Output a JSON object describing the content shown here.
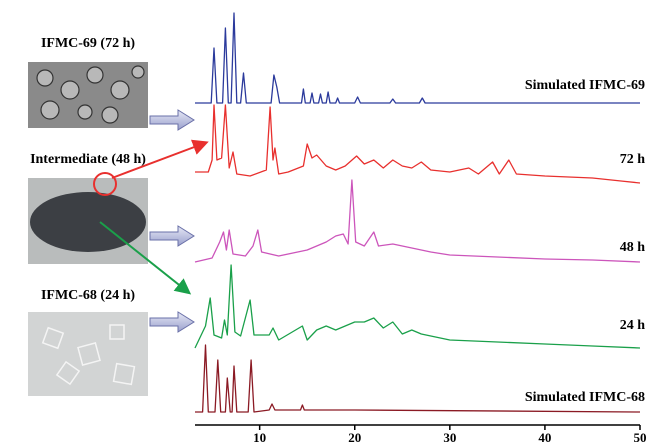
{
  "chart_data": {
    "type": "line",
    "xlim": [
      3.2,
      50
    ],
    "xticks": [
      10,
      20,
      30,
      40,
      50
    ],
    "annotations": [
      "IFMC-69 (72 h)",
      "Intermediate (48 h)",
      "IFMC-68 (24 h)"
    ],
    "series": [
      {
        "name": "Simulated IFMC-69",
        "color": "#2b3a9c",
        "x": [
          3.2,
          4.9,
          5.2,
          5.5,
          6.1,
          6.4,
          6.7,
          7.0,
          7.3,
          7.6,
          8.0,
          8.3,
          8.6,
          11.2,
          11.5,
          11.8,
          12.1,
          14.4,
          14.6,
          14.8,
          15.3,
          15.5,
          15.7,
          16.2,
          16.4,
          16.6,
          17.0,
          17.2,
          17.4,
          18.0,
          18.2,
          18.4,
          20.0,
          20.3,
          20.6,
          23.7,
          24.0,
          24.3,
          26.8,
          27.1,
          27.4,
          50
        ],
        "values": [
          0,
          0,
          55,
          0,
          0,
          75,
          0,
          0,
          90,
          0,
          0,
          30,
          0,
          0,
          28,
          16,
          0,
          0,
          14,
          0,
          0,
          10,
          0,
          0,
          9,
          0,
          0,
          11,
          0,
          0,
          5,
          0,
          0,
          6,
          0,
          0,
          4,
          0,
          0,
          5,
          0,
          0
        ]
      },
      {
        "name": "72 h",
        "color": "#e8302e",
        "x": [
          3.2,
          4.6,
          5.0,
          5.2,
          5.5,
          6.0,
          6.4,
          6.8,
          7.2,
          7.6,
          9,
          10.7,
          11.1,
          11.4,
          11.6,
          12.0,
          13,
          14.6,
          15,
          15.5,
          16,
          17,
          18,
          19,
          20.2,
          21,
          22,
          23,
          24,
          25,
          26,
          27,
          28,
          30,
          32,
          33,
          34.5,
          35.2,
          36.2,
          37,
          40,
          45,
          48,
          50
        ],
        "values": [
          8,
          8,
          20,
          75,
          20,
          22,
          75,
          12,
          28,
          6,
          4,
          10,
          73,
          20,
          32,
          6,
          8,
          14,
          36,
          22,
          25,
          14,
          10,
          14,
          24,
          16,
          20,
          12,
          20,
          14,
          12,
          18,
          10,
          8,
          12,
          6,
          18,
          6,
          20,
          6,
          4,
          2,
          -1,
          -3
        ]
      },
      {
        "name": "48 h",
        "color": "#cc55bb",
        "x": [
          3.2,
          5.0,
          5.8,
          6.2,
          6.5,
          6.8,
          7.2,
          8.5,
          9.3,
          9.8,
          10.2,
          12,
          14,
          15,
          17,
          18,
          18.8,
          19.3,
          19.7,
          20.1,
          21,
          22,
          22.5,
          24,
          26,
          28,
          30,
          35,
          40,
          45,
          50
        ],
        "values": [
          0,
          4,
          20,
          30,
          12,
          32,
          8,
          6,
          16,
          32,
          10,
          6,
          10,
          12,
          20,
          26,
          28,
          18,
          82,
          20,
          16,
          30,
          16,
          18,
          14,
          10,
          7,
          5,
          3,
          2,
          0
        ]
      },
      {
        "name": "24 h",
        "color": "#1aa04a",
        "x": [
          3.2,
          4.3,
          4.8,
          5.2,
          6.0,
          6.3,
          6.6,
          7.0,
          7.4,
          8.0,
          9.0,
          9.4,
          11,
          11.4,
          12,
          14.5,
          15,
          16,
          17,
          18,
          19,
          20,
          21,
          22,
          23,
          24,
          25,
          26,
          27,
          30,
          35,
          40,
          45,
          50
        ],
        "values": [
          0,
          22,
          50,
          13,
          10,
          28,
          13,
          83,
          16,
          12,
          48,
          13,
          13,
          20,
          8,
          22,
          8,
          18,
          22,
          18,
          22,
          26,
          26,
          30,
          20,
          26,
          14,
          18,
          14,
          8,
          6,
          4,
          2,
          0
        ]
      },
      {
        "name": "Simulated IFMC-68",
        "color": "#8b1a24",
        "x": [
          3.2,
          4.0,
          4.3,
          4.6,
          5.3,
          5.6,
          5.9,
          6.4,
          6.6,
          6.9,
          7.1,
          7.3,
          7.6,
          8.8,
          9.1,
          9.4,
          11.0,
          11.3,
          11.6,
          14.3,
          14.5,
          14.7,
          20,
          50
        ],
        "values": [
          0,
          0,
          67,
          0,
          0,
          52,
          0,
          0,
          34,
          0,
          0,
          46,
          0,
          0,
          52,
          0,
          2,
          8,
          2,
          2,
          7,
          2,
          2,
          0
        ]
      }
    ]
  }
}
